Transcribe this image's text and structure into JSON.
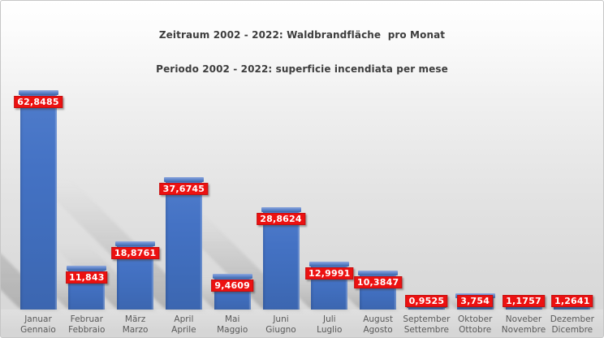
{
  "title": {
    "line1": "Zeitraum 2002 - 2022: Waldbrandfläche  pro Monat",
    "line2": "Periodo 2002 - 2022: superficie incendiata per mese"
  },
  "chart_data": {
    "type": "bar",
    "title": "Zeitraum 2002 - 2022: Waldbrandfläche pro Monat",
    "subtitle": "Periodo 2002 - 2022: superficie incendiata per mese",
    "xlabel": "",
    "ylabel": "",
    "ylim": [
      0,
      65
    ],
    "grid": false,
    "legend": false,
    "axes_visible": false,
    "categories": [
      {
        "de": "Januar",
        "it": "Gennaio"
      },
      {
        "de": "Februar",
        "it": "Febbraio"
      },
      {
        "de": "März",
        "it": "Marzo"
      },
      {
        "de": "April",
        "it": "Aprile"
      },
      {
        "de": "Mai",
        "it": "Maggio"
      },
      {
        "de": "Juni",
        "it": "Giugno"
      },
      {
        "de": "Juli",
        "it": "Luglio"
      },
      {
        "de": "August",
        "it": "Agosto"
      },
      {
        "de": "September",
        "it": "Settembre"
      },
      {
        "de": "Oktober",
        "it": "Ottobre"
      },
      {
        "de": "Noveber",
        "it": "Novembre"
      },
      {
        "de": "Dezember",
        "it": "Dicembre"
      }
    ],
    "values": [
      62.8485,
      11.843,
      18.8761,
      37.6745,
      9.4609,
      28.8624,
      12.9991,
      10.3847,
      0.9525,
      3.754,
      1.1757,
      1.2641
    ],
    "value_labels": [
      "62,8485",
      "11,843",
      "18,8761",
      "37,6745",
      "9,4609",
      "28,8624",
      "12,9991",
      "10,3847",
      "0,9525",
      "3,754",
      "1,1757",
      "1,2641"
    ],
    "colors": {
      "bar_fill": "#4472c4",
      "bar_cap": "#6288cf",
      "value_label_bg": "#ec1111",
      "value_label_text": "#ffffff",
      "category_text": "#595959",
      "title_text": "#3d3d3d",
      "background_top": "#ffffff",
      "background_bottom": "#d6d6d6"
    }
  }
}
